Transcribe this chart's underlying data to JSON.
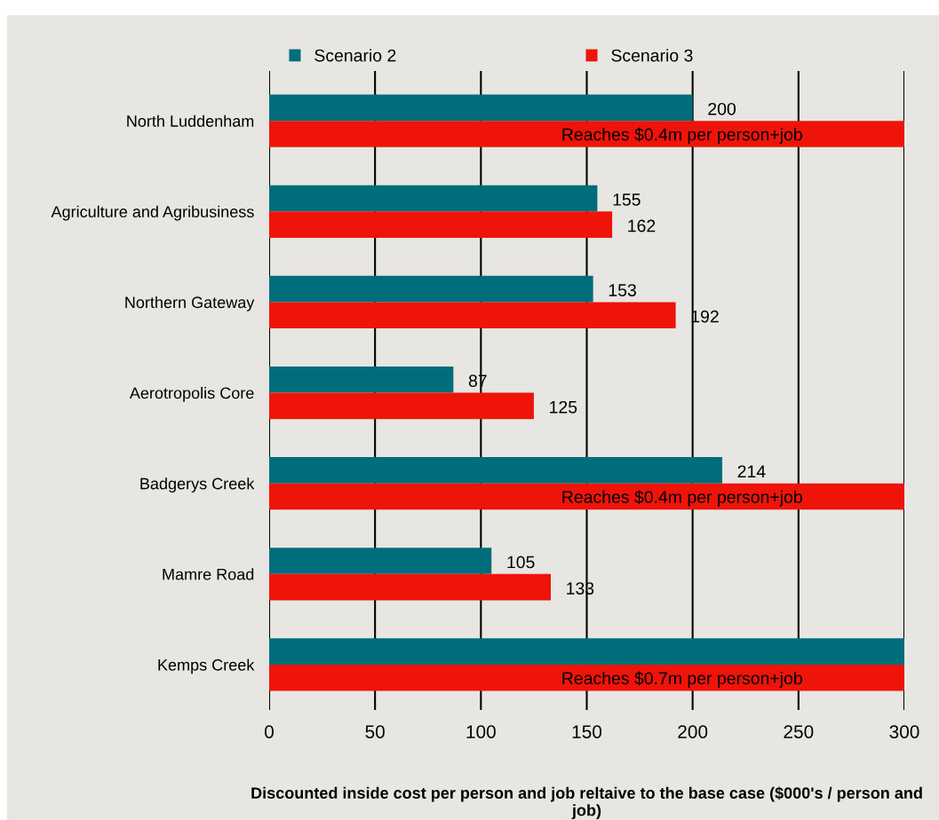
{
  "chart_data": {
    "type": "bar",
    "orientation": "horizontal",
    "categories": [
      "North Luddenham",
      "Agriculture and Agribusiness",
      "Northern Gateway",
      "Aerotropolis Core",
      "Badgerys Creek",
      "Mamre Road",
      "Kemps Creek"
    ],
    "series": [
      {
        "name": "Scenario 2",
        "color": "#006d7a",
        "values": [
          200,
          155,
          153,
          87,
          214,
          105,
          300
        ],
        "value_labels": [
          "200",
          "155",
          "153",
          "87",
          "214",
          "105",
          null
        ]
      },
      {
        "name": "Scenario 3",
        "color": "#ee1409",
        "values": [
          300,
          162,
          192,
          125,
          300,
          133,
          300
        ],
        "value_labels": [
          "Reaches $0.4m per person+job",
          "162",
          "192",
          "125",
          "Reaches $0.4m per person+job",
          "133",
          "Reaches $0.7m per person+job"
        ]
      }
    ],
    "xlabel": "Discounted inside cost per person and job reltaive to the base case ($000's / person and job)",
    "xlim": [
      0,
      300
    ],
    "xticks": [
      0,
      50,
      100,
      150,
      200,
      250,
      300
    ],
    "grid": "x",
    "legend": "top"
  }
}
